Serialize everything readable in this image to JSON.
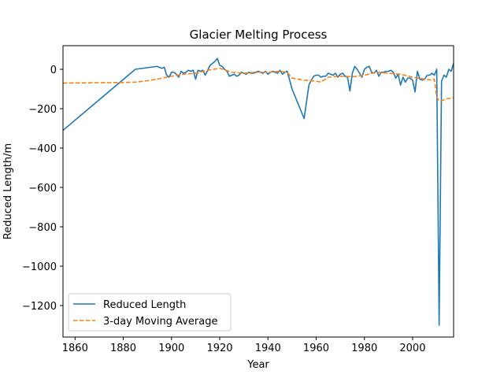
{
  "chart_data": {
    "type": "line",
    "title": "Glacier Melting Process",
    "xlabel": "Year",
    "ylabel": "Reduced Length/m",
    "xlim": [
      1855,
      2017
    ],
    "ylim": [
      -1360,
      120
    ],
    "xticks": [
      1860,
      1880,
      1900,
      1920,
      1940,
      1960,
      1980,
      2000
    ],
    "yticks": [
      0,
      -200,
      -400,
      -600,
      -800,
      -1000,
      -1200
    ],
    "legend_position": "lower-left",
    "grid": false,
    "series": [
      {
        "name": "Reduced Length",
        "color": "#1f77b4",
        "style": "solid",
        "x": [
          1855,
          1885,
          1894,
          1896,
          1897,
          1898,
          1899,
          1900,
          1901,
          1902,
          1903,
          1904,
          1905,
          1906,
          1907,
          1908,
          1909,
          1910,
          1911,
          1912,
          1913,
          1914,
          1915,
          1916,
          1917,
          1918,
          1919,
          1920,
          1921,
          1922,
          1923,
          1924,
          1925,
          1926,
          1927,
          1928,
          1929,
          1930,
          1931,
          1932,
          1933,
          1934,
          1935,
          1936,
          1937,
          1938,
          1939,
          1940,
          1941,
          1942,
          1943,
          1944,
          1945,
          1946,
          1947,
          1948,
          1950,
          1955,
          1957,
          1958,
          1959,
          1960,
          1961,
          1962,
          1963,
          1964,
          1965,
          1966,
          1967,
          1968,
          1969,
          1970,
          1971,
          1972,
          1973,
          1974,
          1975,
          1976,
          1977,
          1978,
          1979,
          1980,
          1981,
          1982,
          1983,
          1984,
          1985,
          1986,
          1987,
          1988,
          1989,
          1990,
          1991,
          1992,
          1993,
          1994,
          1995,
          1996,
          1997,
          1998,
          1999,
          2000,
          2001,
          2002,
          2003,
          2004,
          2005,
          2006,
          2007,
          2008,
          2009,
          2010,
          2011,
          2012,
          2013,
          2014,
          2015,
          2016,
          2017
        ],
        "y": [
          -310,
          0,
          15,
          5,
          10,
          -30,
          -40,
          -15,
          -15,
          -25,
          -40,
          -10,
          -20,
          -15,
          -5,
          -10,
          -5,
          -50,
          -5,
          -10,
          -5,
          -30,
          -5,
          20,
          30,
          40,
          55,
          20,
          15,
          0,
          -10,
          -35,
          -30,
          -25,
          -35,
          -30,
          -15,
          -20,
          -25,
          -15,
          -20,
          -20,
          -15,
          -10,
          -15,
          -20,
          -10,
          -25,
          -15,
          -10,
          -15,
          -20,
          -5,
          -25,
          -15,
          -10,
          -100,
          -250,
          -80,
          -55,
          -35,
          -30,
          -30,
          -40,
          -35,
          -35,
          -20,
          -25,
          -30,
          -20,
          -40,
          -25,
          -20,
          -35,
          -40,
          -110,
          -20,
          15,
          0,
          -20,
          -40,
          0,
          10,
          15,
          -15,
          -20,
          -5,
          -35,
          -15,
          -15,
          -10,
          -10,
          -5,
          -15,
          -45,
          -25,
          -80,
          -40,
          -65,
          -45,
          -45,
          -55,
          -115,
          -10,
          -50,
          -55,
          -50,
          -30,
          -30,
          -20,
          -30,
          0,
          -1300,
          -60,
          -30,
          -40,
          0,
          -10,
          30
        ]
      },
      {
        "name": "3-day Moving Average",
        "color": "#ff7f0e",
        "style": "dashed",
        "x": [
          1855,
          1870,
          1880,
          1885,
          1890,
          1895,
          1900,
          1905,
          1910,
          1915,
          1920,
          1925,
          1930,
          1935,
          1940,
          1945,
          1948,
          1950,
          1955,
          1960,
          1962,
          1965,
          1970,
          1975,
          1980,
          1985,
          1990,
          1995,
          2000,
          2005,
          2008,
          2009,
          2010,
          2011,
          2012,
          2014,
          2017
        ],
        "y": [
          -70,
          -68,
          -67,
          -65,
          -58,
          -48,
          -35,
          -25,
          -20,
          -5,
          5,
          -15,
          -20,
          -15,
          -15,
          -10,
          -15,
          -45,
          -55,
          -60,
          -65,
          -40,
          -35,
          -38,
          -30,
          -15,
          -20,
          -25,
          -40,
          -50,
          -55,
          -50,
          -140,
          -160,
          -160,
          -150,
          -145
        ]
      }
    ]
  }
}
